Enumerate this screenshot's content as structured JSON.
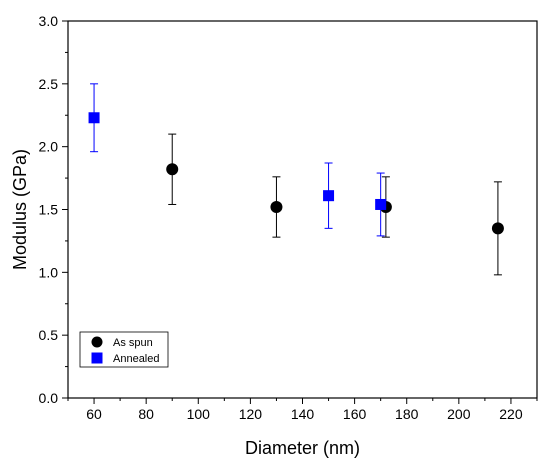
{
  "chart_data": {
    "type": "scatter",
    "xlabel": "Diameter (nm)",
    "ylabel": "Modulus (GPa)",
    "xlim": [
      50,
      230
    ],
    "ylim": [
      0.0,
      3.0
    ],
    "x_ticks": [
      "60",
      "80",
      "100",
      "120",
      "140",
      "160",
      "180",
      "200",
      "220"
    ],
    "y_ticks": [
      "0.0",
      "0.5",
      "1.0",
      "1.5",
      "2.0",
      "2.5",
      "3.0"
    ],
    "legend_position": "bottom-left",
    "grid": false,
    "series": [
      {
        "name": "As spun",
        "marker": "circle",
        "color": "#000000",
        "points": [
          {
            "x": 90,
            "y": 1.82,
            "y_low": 1.54,
            "y_high": 2.1
          },
          {
            "x": 130,
            "y": 1.52,
            "y_low": 1.28,
            "y_high": 1.76
          },
          {
            "x": 172,
            "y": 1.52,
            "y_low": 1.28,
            "y_high": 1.76
          },
          {
            "x": 215,
            "y": 1.35,
            "y_low": 0.98,
            "y_high": 1.72
          }
        ]
      },
      {
        "name": "Annealed",
        "marker": "square",
        "color": "#0000ff",
        "points": [
          {
            "x": 60,
            "y": 2.23,
            "y_low": 1.96,
            "y_high": 2.5
          },
          {
            "x": 150,
            "y": 1.61,
            "y_low": 1.35,
            "y_high": 1.87
          },
          {
            "x": 170,
            "y": 1.54,
            "y_low": 1.29,
            "y_high": 1.79
          }
        ]
      }
    ]
  }
}
